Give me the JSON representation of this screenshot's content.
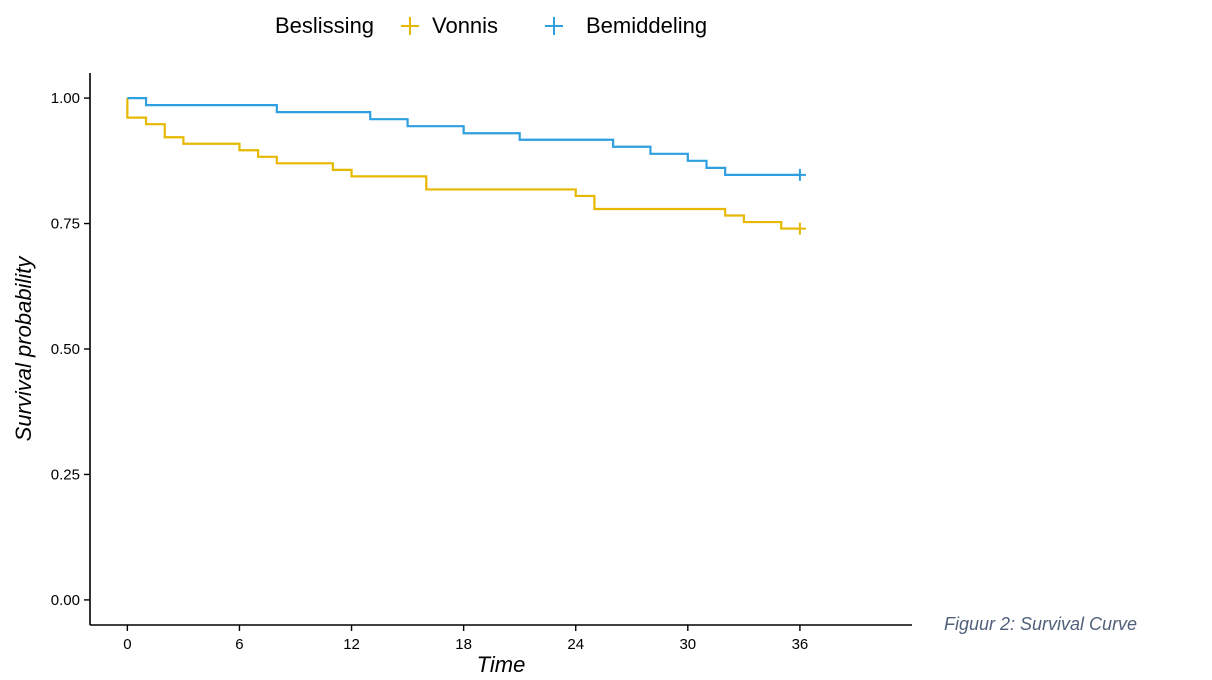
{
  "chart_data": {
    "type": "line",
    "subtype": "step",
    "xlabel": "Time",
    "ylabel": "Survival probability",
    "xlim": [
      -2,
      42
    ],
    "ylim": [
      -0.05,
      1.05
    ],
    "xticks": [
      0,
      6,
      12,
      18,
      24,
      30,
      36
    ],
    "xtick_labels": [
      "0",
      "6",
      "12",
      "18",
      "24",
      "30",
      "36"
    ],
    "yticks": [
      0,
      0.25,
      0.5,
      0.75,
      1.0
    ],
    "ytick_labels": [
      "0.00",
      "0.25",
      "0.50",
      "0.75",
      "1.00"
    ],
    "grid": false,
    "legend": {
      "position": "top",
      "title": "Beslissing"
    },
    "series": [
      {
        "name": "Vonnis",
        "color": "#E7B800",
        "x": [
          0,
          0,
          1,
          2,
          3,
          6,
          7,
          8,
          11,
          12,
          16,
          24,
          25,
          32,
          33,
          35,
          36
        ],
        "y": [
          1.0,
          0.961,
          0.948,
          0.922,
          0.909,
          0.896,
          0.883,
          0.87,
          0.857,
          0.844,
          0.818,
          0.805,
          0.779,
          0.766,
          0.753,
          0.74,
          0.74
        ],
        "censor": [
          [
            36,
            0.74
          ]
        ]
      },
      {
        "name": "Bemiddeling",
        "color": "#2E9FDF",
        "x": [
          0,
          1,
          8,
          13,
          15,
          18,
          21,
          26,
          28,
          30,
          31,
          32,
          36
        ],
        "y": [
          1.0,
          0.986,
          0.972,
          0.958,
          0.944,
          0.93,
          0.917,
          0.903,
          0.889,
          0.875,
          0.861,
          0.847,
          0.847
        ],
        "censor": [
          [
            36,
            0.847
          ]
        ]
      }
    ]
  },
  "caption": "Figuur 2: Survival Curve"
}
